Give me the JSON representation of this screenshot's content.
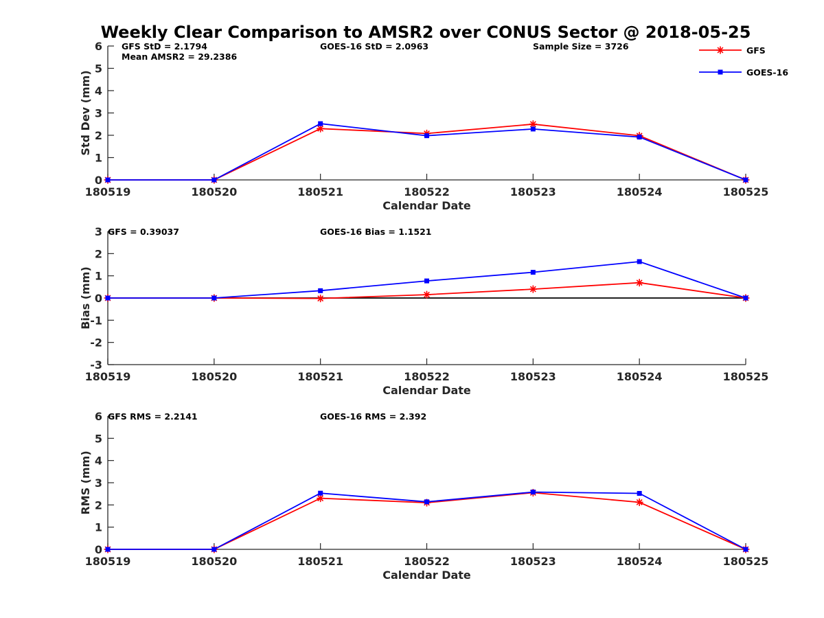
{
  "title": "Weekly Clear Comparison to AMSR2 over CONUS Sector @ 2018-05-25",
  "colors": {
    "gfs": "#ff0000",
    "goes": "#0000ff",
    "axis": "#262626",
    "zero_line": "#000000"
  },
  "legend": [
    {
      "name": "GFS",
      "marker": "asterisk"
    },
    {
      "name": "GOES-16",
      "marker": "square"
    }
  ],
  "chart_data": [
    {
      "type": "line",
      "x": [
        "180519",
        "180520",
        "180521",
        "180522",
        "180523",
        "180524",
        "180525"
      ],
      "xlabel": "Calendar Date",
      "ylabel": "Std Dev (mm)",
      "ylim": [
        0,
        6
      ],
      "yticks": [
        "0",
        "1",
        "2",
        "3",
        "4",
        "5",
        "6"
      ],
      "series": [
        {
          "name": "GFS",
          "values": [
            0,
            0,
            2.3,
            2.08,
            2.5,
            1.98,
            0
          ]
        },
        {
          "name": "GOES-16",
          "values": [
            0,
            0,
            2.52,
            1.98,
            2.28,
            1.92,
            0
          ]
        }
      ],
      "annotations": [
        "GFS StD = 2.1794",
        "Mean AMSR2 = 29.2386",
        "GOES-16 StD = 2.0963",
        "Sample Size = 3726"
      ],
      "zero_line": false,
      "grid": false
    },
    {
      "type": "line",
      "x": [
        "180519",
        "180520",
        "180521",
        "180522",
        "180523",
        "180524",
        "180525"
      ],
      "xlabel": "Calendar Date",
      "ylabel": "Bias (mm)",
      "ylim": [
        -3,
        3
      ],
      "yticks": [
        "-3",
        "-2",
        "-1",
        "0",
        "1",
        "2",
        "3"
      ],
      "series": [
        {
          "name": "GFS",
          "values": [
            0,
            0,
            -0.02,
            0.15,
            0.4,
            0.69,
            0
          ]
        },
        {
          "name": "GOES-16",
          "values": [
            0,
            0,
            0.33,
            0.77,
            1.16,
            1.64,
            0
          ]
        }
      ],
      "annotations": [
        "GFS = 0.39037",
        "GOES-16 Bias  = 1.1521"
      ],
      "zero_line": true,
      "grid": false
    },
    {
      "type": "line",
      "x": [
        "180519",
        "180520",
        "180521",
        "180522",
        "180523",
        "180524",
        "180525"
      ],
      "xlabel": "Calendar Date",
      "ylabel": "RMS (mm)",
      "ylim": [
        0,
        6
      ],
      "yticks": [
        "0",
        "1",
        "2",
        "3",
        "4",
        "5",
        "6"
      ],
      "series": [
        {
          "name": "GFS",
          "values": [
            0,
            0,
            2.3,
            2.1,
            2.55,
            2.12,
            0
          ]
        },
        {
          "name": "GOES-16",
          "values": [
            0,
            0,
            2.53,
            2.14,
            2.58,
            2.52,
            0
          ]
        }
      ],
      "annotations": [
        "GFS RMS = 2.2141",
        "GOES-16 RMS = 2.392"
      ],
      "zero_line": false,
      "grid": false
    }
  ]
}
